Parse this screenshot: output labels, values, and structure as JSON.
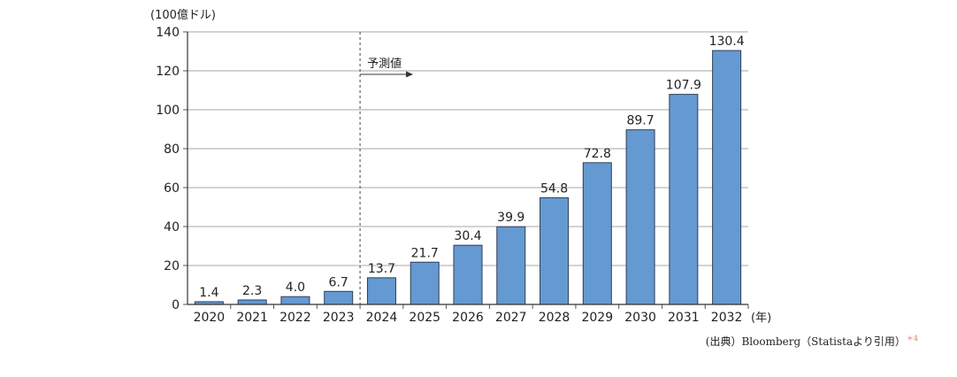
{
  "chart_data": {
    "type": "bar",
    "ylabel": "(100億ドル)",
    "xunit": "(年)",
    "categories": [
      "2020",
      "2021",
      "2022",
      "2023",
      "2024",
      "2025",
      "2026",
      "2027",
      "2028",
      "2029",
      "2030",
      "2031",
      "2032"
    ],
    "values": [
      1.4,
      2.3,
      4.0,
      6.7,
      13.7,
      21.7,
      30.4,
      39.9,
      54.8,
      72.8,
      89.7,
      107.9,
      130.4
    ],
    "value_labels": [
      "1.4",
      "2.3",
      "4.0",
      "6.7",
      "13.7",
      "21.7",
      "30.4",
      "39.9",
      "54.8",
      "72.8",
      "89.7",
      "107.9",
      "130.4"
    ],
    "ylim": [
      0,
      140
    ],
    "yticks": [
      0,
      20,
      40,
      60,
      80,
      100,
      120,
      140
    ],
    "grid": true,
    "bar_color": "#6499d2",
    "forecast_start": "2024",
    "forecast_label": "予測値"
  },
  "source": {
    "text": "(出典）Bloomberg（Statistaより引用）",
    "note": "＊4",
    "note_color": "#e8776a"
  }
}
